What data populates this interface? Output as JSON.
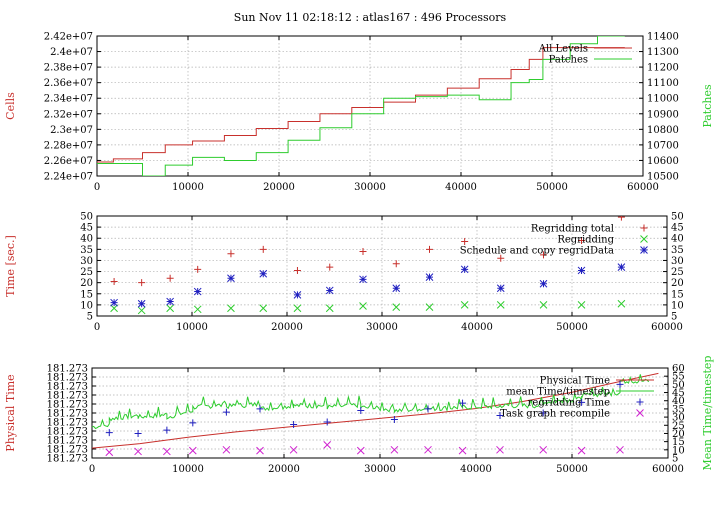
{
  "title": "Sun Nov 11 02:18:12 : atlas167 : 496 Processors",
  "colors": {
    "red": "#c8302c",
    "green": "#2ecc2e",
    "blue": "#2020c0",
    "magenta": "#d020d0",
    "grid": "#b0b0b0",
    "axis": "#000000"
  },
  "chart_data": [
    {
      "type": "line",
      "ylabel": "Cells",
      "y2label": "Patches",
      "xlim": [
        0,
        60000
      ],
      "ylim": [
        22400000,
        24200000
      ],
      "y2lim": [
        10500,
        11400
      ],
      "xticks": [
        0,
        10000,
        20000,
        30000,
        40000,
        50000,
        60000
      ],
      "xtick_labels": [
        "0",
        "10000",
        "20000",
        "30000",
        "40000",
        "50000",
        "60000"
      ],
      "yticks": [
        22400000,
        22600000,
        22800000,
        23000000,
        23200000,
        23400000,
        23600000,
        23800000,
        24000000,
        24200000
      ],
      "ytick_labels": [
        "2.24e+07",
        "2.26e+07",
        "2.28e+07",
        "2.3e+07",
        "2.32e+07",
        "2.34e+07",
        "2.36e+07",
        "2.38e+07",
        "2.4e+07",
        "2.42e+07"
      ],
      "y2ticks": [
        10500,
        10600,
        10700,
        10800,
        10900,
        11000,
        11100,
        11200,
        11300,
        11400
      ],
      "y2tick_labels": [
        "10500",
        "10600",
        "10700",
        "10800",
        "10900",
        "11000",
        "11100",
        "11200",
        "11300",
        "11400"
      ],
      "legend_position": "top-right",
      "series": [
        {
          "name": "All Levels",
          "color": "red",
          "axis": "left",
          "step": true,
          "x": [
            0,
            1800,
            5000,
            7500,
            10500,
            14000,
            17500,
            21000,
            24500,
            28000,
            31500,
            35000,
            38500,
            42000,
            45500,
            47500,
            49000,
            52000,
            55000,
            58000
          ],
          "y": [
            22580000,
            22620000,
            22700000,
            22800000,
            22850000,
            22920000,
            23010000,
            23100000,
            23200000,
            23280000,
            23350000,
            23440000,
            23530000,
            23650000,
            23770000,
            23900000,
            24050000,
            24050000,
            24050000,
            24050000
          ]
        },
        {
          "name": "Patches",
          "color": "green",
          "axis": "right",
          "step": true,
          "x": [
            0,
            1800,
            5000,
            7500,
            10500,
            14000,
            17500,
            21000,
            24500,
            28000,
            31500,
            35000,
            38500,
            42000,
            45500,
            47500,
            49000,
            52000,
            55000,
            58000
          ],
          "y": [
            10580,
            10580,
            10500,
            10570,
            10620,
            10600,
            10650,
            10730,
            10810,
            10900,
            11000,
            11010,
            11020,
            10990,
            11100,
            11120,
            11250,
            11350,
            11400,
            11400
          ]
        }
      ]
    },
    {
      "type": "scatter",
      "ylabel": "Time [sec.]",
      "xlim": [
        0,
        60000
      ],
      "ylim": [
        5,
        50
      ],
      "y2lim": [
        5,
        50
      ],
      "xticks": [
        0,
        10000,
        20000,
        30000,
        40000,
        50000,
        60000
      ],
      "xtick_labels": [
        "0",
        "10000",
        "20000",
        "30000",
        "40000",
        "50000",
        "60000"
      ],
      "yticks": [
        5,
        10,
        15,
        20,
        25,
        30,
        35,
        40,
        45,
        50
      ],
      "ytick_labels": [
        "5",
        "10",
        "15",
        "20",
        "25",
        "30",
        "35",
        "40",
        "45",
        "50"
      ],
      "y2ticks": [
        5,
        10,
        15,
        20,
        25,
        30,
        35,
        40,
        45,
        50
      ],
      "y2tick_labels": [
        "5",
        "10",
        "15",
        "20",
        "25",
        "30",
        "35",
        "40",
        "45",
        "50"
      ],
      "legend_position": "top-right",
      "series": [
        {
          "name": "Regridding total",
          "color": "red",
          "marker": "plus",
          "x": [
            1800,
            4700,
            7700,
            10600,
            14100,
            17500,
            21100,
            24500,
            28000,
            31500,
            35000,
            38700,
            42500,
            47000,
            51000,
            55200
          ],
          "y": [
            20.5,
            20,
            22,
            26,
            33,
            35,
            25.5,
            27,
            34,
            28.5,
            35,
            38.5,
            31,
            32.5,
            39,
            49.5
          ]
        },
        {
          "name": "Regridding",
          "color": "green",
          "marker": "cross",
          "x": [
            1800,
            4700,
            7700,
            10600,
            14100,
            17500,
            21100,
            24500,
            28000,
            31500,
            35000,
            38700,
            42500,
            47000,
            51000,
            55200
          ],
          "y": [
            8.5,
            7.5,
            8.5,
            8,
            8.5,
            8.5,
            8.5,
            8.5,
            9.5,
            9,
            9,
            10,
            10,
            10,
            10,
            10.5
          ]
        },
        {
          "name": "Schedule and copy regridData",
          "color": "blue",
          "marker": "star",
          "x": [
            1800,
            4700,
            7700,
            10600,
            14100,
            17500,
            21100,
            24500,
            28000,
            31500,
            35000,
            38700,
            42500,
            47000,
            51000,
            55200
          ],
          "y": [
            11,
            10.5,
            11.5,
            16,
            22,
            24,
            14.5,
            16.5,
            21.5,
            17.5,
            22.5,
            26,
            17.5,
            19.5,
            25.5,
            27
          ]
        }
      ]
    },
    {
      "type": "line",
      "ylabel": "Physical Time",
      "y2label": "Mean Time/timestep",
      "xlim": [
        0,
        60000
      ],
      "ylim": [
        0,
        10
      ],
      "y2lim": [
        5,
        60
      ],
      "xticks": [
        0,
        10000,
        20000,
        30000,
        40000,
        50000,
        60000
      ],
      "xtick_labels": [
        "0",
        "10000",
        "20000",
        "30000",
        "40000",
        "50000",
        "60000"
      ],
      "yticks": [
        0,
        1,
        2,
        3,
        4,
        5,
        6,
        7,
        8,
        9,
        10
      ],
      "ytick_labels": [
        "181.273",
        "181.273",
        "181.273",
        "181.273",
        "181.273",
        "181.273",
        "181.273",
        "181.273",
        "181.273",
        "181.273",
        "181.273"
      ],
      "y2ticks": [
        5,
        10,
        15,
        20,
        25,
        30,
        35,
        40,
        45,
        50,
        55,
        60
      ],
      "y2tick_labels": [
        "5",
        "10",
        "15",
        "20",
        "25",
        "30",
        "35",
        "40",
        "45",
        "50",
        "55",
        "60"
      ],
      "legend_position": "top-right",
      "series": [
        {
          "name": "Physical Time",
          "color": "red",
          "axis": "left",
          "x": [
            0,
            5000,
            10000,
            15000,
            20000,
            25000,
            30000,
            35000,
            40000,
            45000,
            50000,
            55000,
            59000
          ],
          "y": [
            1.1,
            1.6,
            2.3,
            2.9,
            3.4,
            3.9,
            4.4,
            4.9,
            5.5,
            6.3,
            7.3,
            8.5,
            9.4
          ]
        },
        {
          "name": "mean Time/timestep",
          "color": "green",
          "axis": "right",
          "noisy": true,
          "x": [
            0,
            1800,
            1800,
            4800,
            4800,
            7800,
            7800,
            10500,
            10500,
            14000,
            14000,
            17500,
            17500,
            21000,
            21000,
            24500,
            24500,
            28000,
            28000,
            31500,
            31500,
            35000,
            35000,
            38600,
            38600,
            42500,
            42500,
            47000,
            47000,
            51000,
            51000,
            55000,
            55000,
            58000
          ],
          "y": [
            24,
            25,
            29,
            31,
            30,
            31.5,
            30,
            34,
            36,
            37.5,
            36.5,
            38,
            35,
            37,
            37,
            37,
            36,
            37.5,
            36,
            34.5,
            34,
            35,
            35,
            36,
            36,
            36.5,
            37,
            37,
            39,
            41,
            43,
            45,
            52,
            52
          ]
        },
        {
          "name": "regridding Time",
          "color": "blue",
          "axis": "right",
          "marker": "plus",
          "x": [
            1800,
            4800,
            7800,
            10500,
            14000,
            17500,
            21000,
            24500,
            28000,
            31500,
            35000,
            38600,
            42500,
            47000,
            51000,
            55000
          ],
          "y": [
            20.5,
            20,
            22,
            26.5,
            33,
            35,
            25.5,
            27,
            34,
            28.5,
            35,
            38.5,
            31,
            32.5,
            39,
            50
          ]
        },
        {
          "name": "Task graph recompile",
          "color": "magenta",
          "axis": "right",
          "marker": "cross",
          "x": [
            1800,
            4800,
            7800,
            10500,
            14000,
            17500,
            21000,
            24500,
            28000,
            31500,
            35000,
            38600,
            42500,
            47000,
            51000,
            55000
          ],
          "y": [
            8.5,
            9,
            9,
            9.5,
            10,
            9.5,
            10,
            13,
            9.5,
            10,
            10,
            9.5,
            10,
            10,
            9.5,
            10
          ]
        }
      ]
    }
  ]
}
